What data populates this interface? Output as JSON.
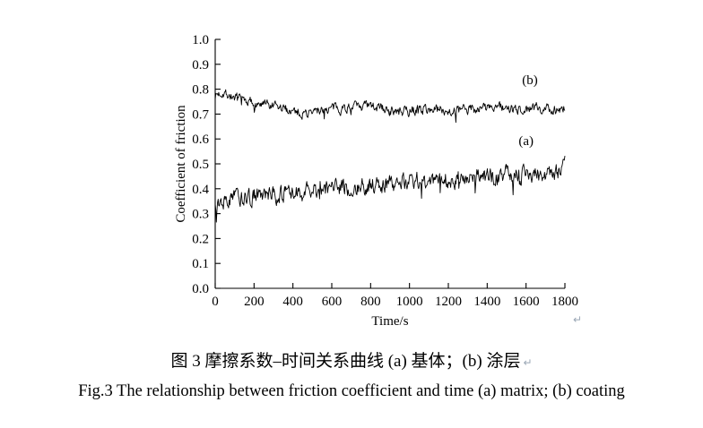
{
  "figure": {
    "caption_cn": "图 3  摩擦系数–时间关系曲线  (a) 基体；(b) 涂层",
    "caption_en": "Fig.3 The relationship between friction coefficient and time (a) matrix; (b) coating",
    "return_mark": "↵"
  },
  "chart_data": {
    "type": "line",
    "title": "",
    "xlabel": "Time/s",
    "ylabel": "Coefficient of friction",
    "xlim": [
      0,
      1800
    ],
    "ylim": [
      0.0,
      1.0
    ],
    "grid": false,
    "legend": "none",
    "line_color": "#000000",
    "xticks": {
      "values": [
        0,
        200,
        400,
        600,
        800,
        1000,
        1200,
        1400,
        1600,
        1800
      ],
      "labels": [
        "0",
        "200",
        "400",
        "600",
        "800",
        "1000",
        "1200",
        "1400",
        "1600",
        "1800"
      ]
    },
    "yticks": {
      "values": [
        0.0,
        0.1,
        0.2,
        0.3,
        0.4,
        0.5,
        0.6,
        0.7,
        0.8,
        0.9,
        1.0
      ],
      "labels": [
        "0.0",
        "0.1",
        "0.2",
        "0.3",
        "0.4",
        "0.5",
        "0.6",
        "0.7",
        "0.8",
        "0.9",
        "1.0"
      ]
    },
    "series": [
      {
        "name": "coating",
        "annotation": {
          "text": "(b)",
          "x": 1620,
          "y": 0.82
        },
        "noise": 0.012,
        "keypoints": [
          [
            0,
            0.775
          ],
          [
            40,
            0.79
          ],
          [
            100,
            0.765
          ],
          [
            200,
            0.745
          ],
          [
            300,
            0.725
          ],
          [
            400,
            0.715
          ],
          [
            480,
            0.7
          ],
          [
            550,
            0.72
          ],
          [
            650,
            0.725
          ],
          [
            750,
            0.73
          ],
          [
            850,
            0.725
          ],
          [
            950,
            0.705
          ],
          [
            1050,
            0.72
          ],
          [
            1150,
            0.72
          ],
          [
            1250,
            0.71
          ],
          [
            1350,
            0.725
          ],
          [
            1450,
            0.73
          ],
          [
            1550,
            0.715
          ],
          [
            1650,
            0.725
          ],
          [
            1750,
            0.72
          ],
          [
            1800,
            0.725
          ]
        ]
      },
      {
        "name": "matrix",
        "annotation": {
          "text": "(a)",
          "x": 1600,
          "y": 0.575
        },
        "noise": 0.02,
        "keypoints": [
          [
            0,
            0.335
          ],
          [
            60,
            0.36
          ],
          [
            150,
            0.365
          ],
          [
            300,
            0.375
          ],
          [
            450,
            0.385
          ],
          [
            600,
            0.4
          ],
          [
            750,
            0.41
          ],
          [
            900,
            0.42
          ],
          [
            1050,
            0.43
          ],
          [
            1200,
            0.44
          ],
          [
            1350,
            0.445
          ],
          [
            1500,
            0.455
          ],
          [
            1650,
            0.455
          ],
          [
            1750,
            0.47
          ],
          [
            1800,
            0.49
          ]
        ]
      }
    ]
  }
}
